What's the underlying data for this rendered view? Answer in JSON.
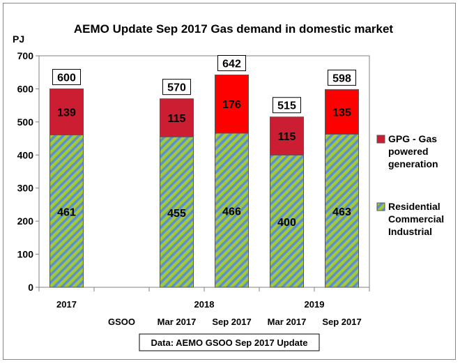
{
  "chart_data": {
    "type": "bar",
    "stacked": true,
    "title": "AEMO Update Sep 2017 Gas demand in domestic market",
    "ylabel": "PJ",
    "ylim": [
      0,
      700
    ],
    "yticks": [
      0,
      100,
      200,
      300,
      400,
      500,
      600,
      700
    ],
    "grid": false,
    "categories": [
      {
        "year": "2017",
        "sub": ""
      },
      {
        "year": "",
        "sub": "GSOO"
      },
      {
        "year": "",
        "sub": "Mar 2017"
      },
      {
        "year": "2018",
        "sub": "Sep 2017"
      },
      {
        "year": "",
        "sub": "Mar 2017"
      },
      {
        "year": "2019",
        "sub": "Sep 2017"
      }
    ],
    "series": [
      {
        "name": "Residential Commercial Industrial",
        "legend_lines": [
          "Residential",
          "Commercial",
          "Industrial"
        ],
        "pattern": "diagonal-stripes",
        "colors": [
          "#a3c83a",
          "#5a8fd0"
        ],
        "values": [
          461,
          null,
          455,
          466,
          400,
          463
        ]
      },
      {
        "name": "GPG - Gas powered generation",
        "legend_lines": [
          "GPG  -  Gas",
          "powered",
          "generation"
        ],
        "values": [
          139,
          null,
          115,
          176,
          115,
          135
        ],
        "fills": [
          "#cc1e32",
          null,
          "#cc1e32",
          "#ff0000",
          "#cc1e32",
          "#ff0000"
        ]
      }
    ],
    "totals": [
      600,
      null,
      570,
      642,
      515,
      598
    ],
    "legend": "right",
    "source_note": "Data: AEMO GSOO Sep 2017 Update"
  }
}
